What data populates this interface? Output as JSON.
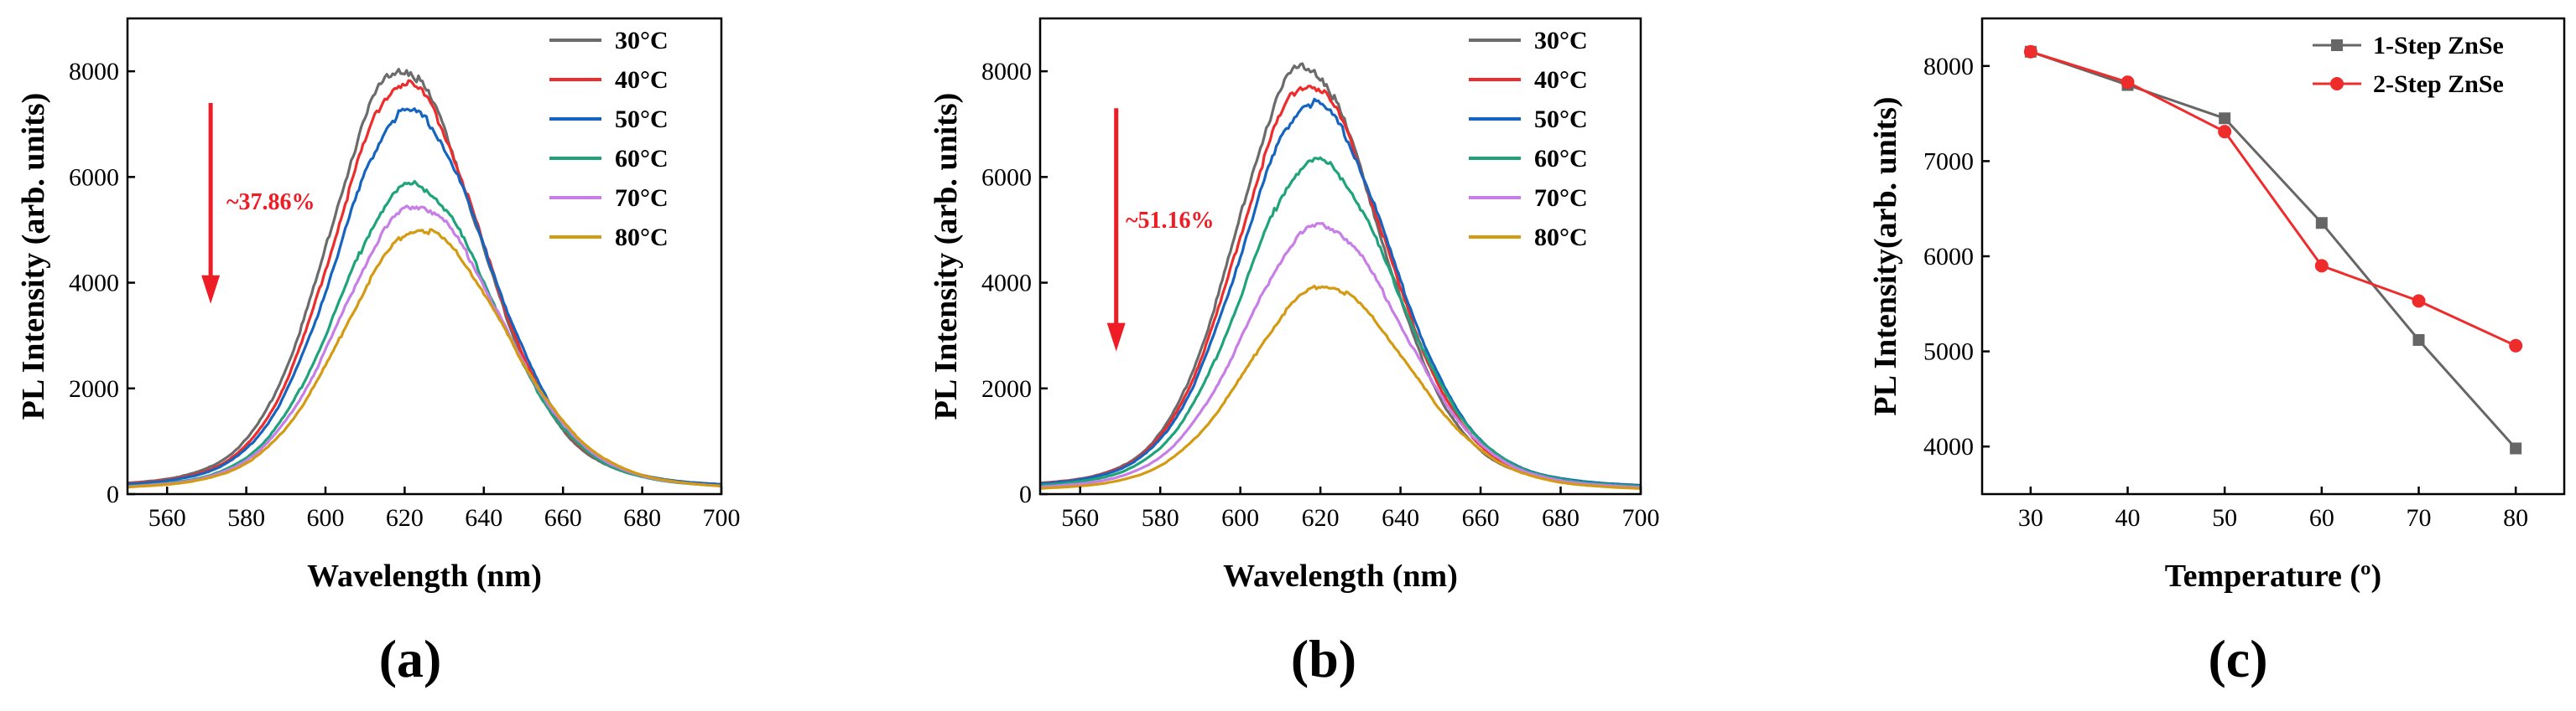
{
  "chart_data": [
    {
      "type": "line",
      "panel": "(a)",
      "xlabel": "Wavelength (nm)",
      "ylabel": "PL Intensity (arb. units)",
      "xlim": [
        550,
        700
      ],
      "ylim": [
        0,
        9000
      ],
      "xticks": [
        560,
        580,
        600,
        620,
        640,
        660,
        680,
        700
      ],
      "yticks": [
        0,
        2000,
        4000,
        6000,
        8000
      ],
      "annotation": "~37.86%",
      "arrow": {
        "x": 571,
        "y_from": 7400,
        "y_to": 3600
      },
      "series": [
        {
          "name": "30°C",
          "color": "#6b6b6b",
          "peak_wavelength": 619,
          "peak_intensity": 8050,
          "fwhm": 42
        },
        {
          "name": "40°C",
          "color": "#ee2c2c",
          "peak_wavelength": 620,
          "peak_intensity": 7780,
          "fwhm": 42
        },
        {
          "name": "50°C",
          "color": "#1565c0",
          "peak_wavelength": 621,
          "peak_intensity": 7250,
          "fwhm": 43
        },
        {
          "name": "60°C",
          "color": "#1fa37a",
          "peak_wavelength": 622,
          "peak_intensity": 5850,
          "fwhm": 44
        },
        {
          "name": "70°C",
          "color": "#c77ee6",
          "peak_wavelength": 623,
          "peak_intensity": 5450,
          "fwhm": 45
        },
        {
          "name": "80°C",
          "color": "#d49a12",
          "peak_wavelength": 624,
          "peak_intensity": 5000,
          "fwhm": 46
        }
      ]
    },
    {
      "type": "line",
      "panel": "(b)",
      "xlabel": "Wavelength (nm)",
      "ylabel": "PL Intensity (arb. units)",
      "xlim": [
        550,
        700
      ],
      "ylim": [
        0,
        9000
      ],
      "xticks": [
        560,
        580,
        600,
        620,
        640,
        660,
        680,
        700
      ],
      "yticks": [
        0,
        2000,
        4000,
        6000,
        8000
      ],
      "annotation": "~51.16%",
      "arrow": {
        "x": 569,
        "y_from": 7300,
        "y_to": 2700
      },
      "series": [
        {
          "name": "30°C",
          "color": "#6b6b6b",
          "peak_wavelength": 616,
          "peak_intensity": 8100,
          "fwhm": 40
        },
        {
          "name": "40°C",
          "color": "#ee2c2c",
          "peak_wavelength": 617,
          "peak_intensity": 7750,
          "fwhm": 41
        },
        {
          "name": "50°C",
          "color": "#1565c0",
          "peak_wavelength": 618,
          "peak_intensity": 7400,
          "fwhm": 42
        },
        {
          "name": "60°C",
          "color": "#1fa37a",
          "peak_wavelength": 619,
          "peak_intensity": 6300,
          "fwhm": 43
        },
        {
          "name": "70°C",
          "color": "#c77ee6",
          "peak_wavelength": 620,
          "peak_intensity": 5080,
          "fwhm": 44
        },
        {
          "name": "80°C",
          "color": "#d49a12",
          "peak_wavelength": 621,
          "peak_intensity": 3930,
          "fwhm": 45
        }
      ]
    },
    {
      "type": "line",
      "panel": "(c)",
      "xlabel": "Temperature (º)",
      "ylabel": "PL Intensity(arb. units)",
      "xlim": [
        25,
        85
      ],
      "ylim": [
        3500,
        8500
      ],
      "xticks": [
        30,
        40,
        50,
        60,
        70,
        80
      ],
      "yticks": [
        4000,
        5000,
        6000,
        7000,
        8000
      ],
      "x": [
        30,
        40,
        50,
        60,
        70,
        80
      ],
      "series": [
        {
          "name": "1-Step ZnSe",
          "color": "#666666",
          "marker": "square",
          "values": [
            8150,
            7800,
            7450,
            6350,
            5120,
            3980
          ]
        },
        {
          "name": "2-Step ZnSe",
          "color": "#ee2c2c",
          "marker": "circle",
          "values": [
            8150,
            7830,
            7310,
            5900,
            5530,
            5060
          ]
        }
      ]
    }
  ]
}
